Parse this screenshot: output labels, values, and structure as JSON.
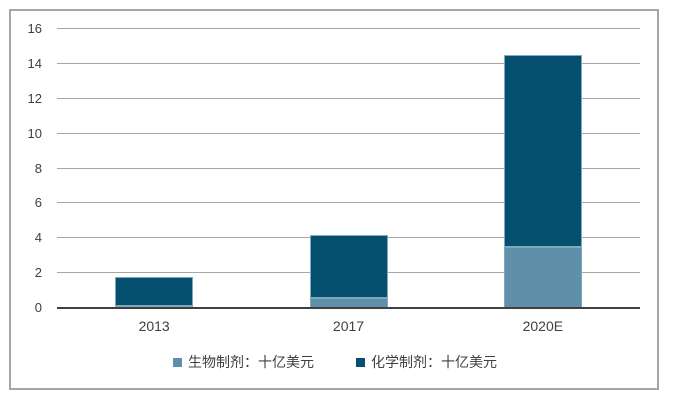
{
  "chart_data": {
    "type": "bar",
    "subtype": "stacked",
    "title": "",
    "categories": [
      "2013",
      "2017",
      "2020E"
    ],
    "series": [
      {
        "name": "生物制剂：十亿美元",
        "color": "#6090A9",
        "values": [
          0.1,
          0.6,
          3.5
        ]
      },
      {
        "name": "化学制剂：十亿美元",
        "color": "#05506E",
        "values": [
          1.7,
          3.6,
          11.0
        ]
      }
    ],
    "ylim": [
      0,
      16
    ],
    "yticks": [
      0,
      2,
      4,
      6,
      8,
      10,
      12,
      14,
      16
    ],
    "xlabel": "",
    "ylabel": "",
    "grid": true,
    "legend_position": "bottom",
    "colors": {
      "gridline": "#A6A6A6",
      "axis_line": "#404040",
      "tick_label": "#404040",
      "frame_border": "#A6A6A6",
      "background": "#FFFFFF",
      "bar_border": "#7FA9BC"
    }
  }
}
